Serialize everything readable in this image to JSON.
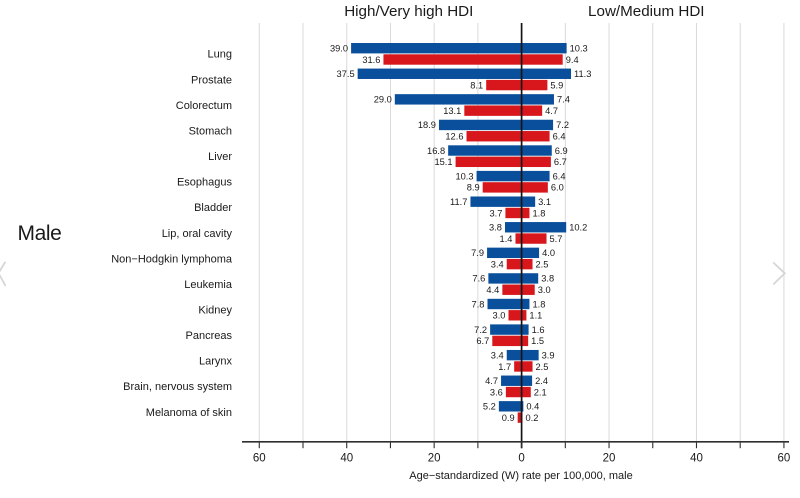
{
  "page": {
    "background": "#ffffff"
  },
  "carousel": {
    "prev_icon": "chevron-left",
    "next_icon": "chevron-right",
    "icon_color": "#d6d6d6"
  },
  "chart_data": {
    "type": "bar",
    "orientation": "horizontal-diverging",
    "panel_label": "Male",
    "titles": {
      "left": "High/Very high HDI",
      "right": "Low/Medium HDI"
    },
    "xlabel": "Age−standardized (W) rate per 100,000, male",
    "axis": {
      "max": 60,
      "major_step": 20,
      "minor_step": 10,
      "tick_labels": [
        "60",
        "40",
        "20",
        "0",
        "20",
        "40",
        "60"
      ]
    },
    "grid": true,
    "legend": "none",
    "colors": {
      "blue": "#0A4F9C",
      "red": "#D7171B",
      "gridline": "#d9d9d9",
      "axis_line": "#2e2e2e",
      "zero_line": "#161616",
      "text": "#1a1a1a"
    },
    "categories": [
      "Lung",
      "Prostate",
      "Colorectum",
      "Stomach",
      "Liver",
      "Esophagus",
      "Bladder",
      "Lip, oral cavity",
      "Non−Hodgkin lymphoma",
      "Leukemia",
      "Kidney",
      "Pancreas",
      "Larynx",
      "Brain, nervous system",
      "Melanoma of skin"
    ],
    "series": [
      {
        "name": "left-blue",
        "side": "left",
        "color_key": "blue",
        "values": [
          39.0,
          37.5,
          29.0,
          18.9,
          16.8,
          10.3,
          11.7,
          3.8,
          7.9,
          7.6,
          7.8,
          7.2,
          3.4,
          4.7,
          5.2
        ]
      },
      {
        "name": "left-red",
        "side": "left",
        "color_key": "red",
        "values": [
          31.6,
          8.1,
          13.1,
          12.6,
          15.1,
          8.9,
          3.7,
          1.4,
          3.4,
          4.4,
          3.0,
          6.7,
          1.7,
          3.6,
          0.9
        ]
      },
      {
        "name": "right-blue",
        "side": "right",
        "color_key": "blue",
        "values": [
          10.3,
          11.3,
          7.4,
          7.2,
          6.9,
          6.4,
          3.1,
          10.2,
          4.0,
          3.8,
          1.8,
          1.6,
          3.9,
          2.4,
          0.4
        ]
      },
      {
        "name": "right-red",
        "side": "right",
        "color_key": "red",
        "values": [
          9.4,
          5.9,
          4.7,
          6.4,
          6.7,
          6.0,
          1.8,
          5.7,
          2.5,
          3.0,
          1.1,
          1.5,
          2.5,
          2.1,
          0.2
        ]
      }
    ]
  }
}
